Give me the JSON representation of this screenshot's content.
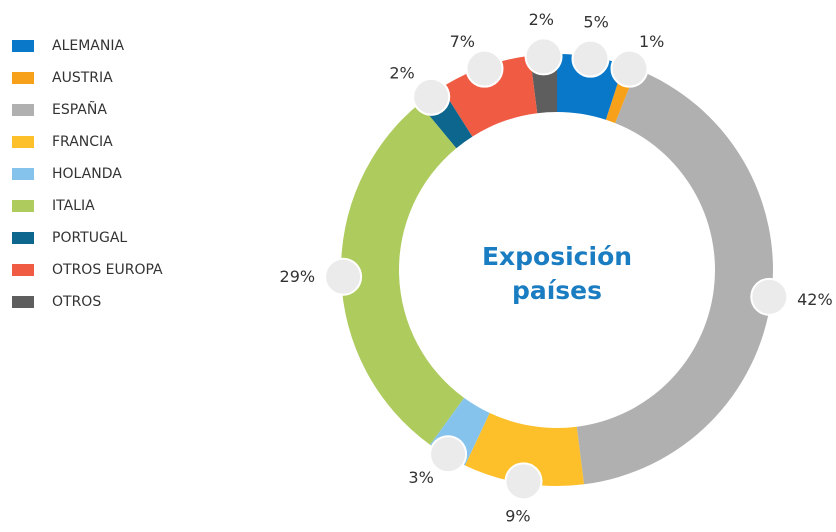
{
  "chart_data": {
    "type": "donut",
    "title": [
      "Exposición",
      "países"
    ],
    "categories": [
      "ALEMANIA",
      "AUSTRIA",
      "ESPAÑA",
      "FRANCIA",
      "HOLANDA",
      "ITALIA",
      "PORTUGAL",
      "OTROS EUROPA",
      "OTROS"
    ],
    "values": [
      5,
      1,
      42,
      9,
      3,
      29,
      2,
      7,
      2
    ],
    "value_labels": [
      "5%",
      "1%",
      "42%",
      "9%",
      "3%",
      "29%",
      "2%",
      "7%",
      "2%"
    ],
    "colors": [
      "#0a78c8",
      "#f7a11a",
      "#b0b0b0",
      "#fdc02a",
      "#86c3ec",
      "#aecb5e",
      "#0d668d",
      "#f05b44",
      "#5e5e5e"
    ],
    "legend": "left"
  }
}
